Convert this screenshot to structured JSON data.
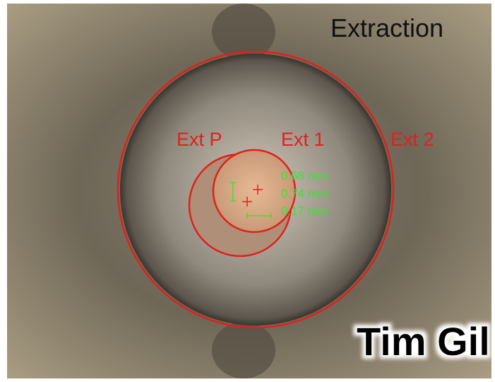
{
  "title": "Extraction",
  "labels": {
    "ext_p": "Ext P",
    "ext_1": "Ext 1",
    "ext_2": "Ext 2"
  },
  "measurements": [
    "0.68 mm",
    "0.74 mm",
    "0.17 mm"
  ],
  "watermark": "Tim Gil"
}
